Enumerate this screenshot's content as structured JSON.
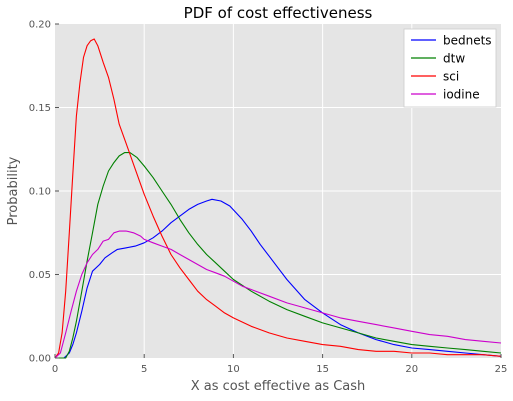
{
  "chart_data": {
    "type": "line",
    "title": "PDF of cost effectiveness",
    "xlabel": "X as cost effective as Cash",
    "ylabel": "Probability",
    "xlim": [
      0,
      25
    ],
    "ylim": [
      0,
      0.2
    ],
    "xticks": [
      0,
      5,
      10,
      15,
      20,
      25
    ],
    "xtick_labels": [
      "0",
      "5",
      "10",
      "15",
      "20",
      "25"
    ],
    "yticks": [
      0,
      0.05,
      0.1,
      0.15,
      0.2
    ],
    "ytick_labels": [
      "0.00",
      "0.05",
      "0.10",
      "0.15",
      "0.20"
    ],
    "grid": true,
    "legend_position": "top-right",
    "series": [
      {
        "name": "bednets",
        "color": "#0000ff",
        "points": [
          [
            0,
            0
          ],
          [
            0.5,
            0
          ],
          [
            0.8,
            0.003
          ],
          [
            1.0,
            0.008
          ],
          [
            1.2,
            0.015
          ],
          [
            1.5,
            0.028
          ],
          [
            1.8,
            0.042
          ],
          [
            2.1,
            0.052
          ],
          [
            2.5,
            0.056
          ],
          [
            2.8,
            0.06
          ],
          [
            3.2,
            0.063
          ],
          [
            3.5,
            0.065
          ],
          [
            4.0,
            0.066
          ],
          [
            4.5,
            0.067
          ],
          [
            5.0,
            0.069
          ],
          [
            5.5,
            0.072
          ],
          [
            6.0,
            0.076
          ],
          [
            6.5,
            0.081
          ],
          [
            7.0,
            0.085
          ],
          [
            7.5,
            0.089
          ],
          [
            8.0,
            0.092
          ],
          [
            8.5,
            0.094
          ],
          [
            8.8,
            0.095
          ],
          [
            9.3,
            0.094
          ],
          [
            9.8,
            0.091
          ],
          [
            10.5,
            0.083
          ],
          [
            11.0,
            0.076
          ],
          [
            11.5,
            0.068
          ],
          [
            12.0,
            0.061
          ],
          [
            12.5,
            0.054
          ],
          [
            13.0,
            0.047
          ],
          [
            13.5,
            0.041
          ],
          [
            14.0,
            0.035
          ],
          [
            15.0,
            0.027
          ],
          [
            16.0,
            0.02
          ],
          [
            17.0,
            0.015
          ],
          [
            18.0,
            0.011
          ],
          [
            19.0,
            0.008
          ],
          [
            20.0,
            0.006
          ],
          [
            21.0,
            0.005
          ],
          [
            22.0,
            0.004
          ],
          [
            23.0,
            0.003
          ],
          [
            24.0,
            0.002
          ],
          [
            25.0,
            0.001
          ]
        ]
      },
      {
        "name": "dtw",
        "color": "#008000",
        "points": [
          [
            0,
            0
          ],
          [
            0.6,
            0
          ],
          [
            0.8,
            0.004
          ],
          [
            1.0,
            0.012
          ],
          [
            1.2,
            0.022
          ],
          [
            1.5,
            0.04
          ],
          [
            1.8,
            0.058
          ],
          [
            2.1,
            0.075
          ],
          [
            2.4,
            0.092
          ],
          [
            2.7,
            0.103
          ],
          [
            3.0,
            0.112
          ],
          [
            3.3,
            0.117
          ],
          [
            3.6,
            0.121
          ],
          [
            3.9,
            0.123
          ],
          [
            4.2,
            0.123
          ],
          [
            4.6,
            0.12
          ],
          [
            5.0,
            0.115
          ],
          [
            5.5,
            0.108
          ],
          [
            6.0,
            0.1
          ],
          [
            6.5,
            0.092
          ],
          [
            7.0,
            0.083
          ],
          [
            7.5,
            0.075
          ],
          [
            8.0,
            0.068
          ],
          [
            8.5,
            0.062
          ],
          [
            9.0,
            0.057
          ],
          [
            9.5,
            0.052
          ],
          [
            10.0,
            0.047
          ],
          [
            11.0,
            0.04
          ],
          [
            12.0,
            0.034
          ],
          [
            13.0,
            0.029
          ],
          [
            14.0,
            0.025
          ],
          [
            15.0,
            0.021
          ],
          [
            16.0,
            0.018
          ],
          [
            17.0,
            0.015
          ],
          [
            18.0,
            0.012
          ],
          [
            19.0,
            0.01
          ],
          [
            20.0,
            0.008
          ],
          [
            21.0,
            0.007
          ],
          [
            22.0,
            0.006
          ],
          [
            23.0,
            0.005
          ],
          [
            24.0,
            0.004
          ],
          [
            25.0,
            0.003
          ]
        ]
      },
      {
        "name": "sci",
        "color": "#ff0000",
        "points": [
          [
            0,
            0
          ],
          [
            0.2,
            0.003
          ],
          [
            0.4,
            0.015
          ],
          [
            0.6,
            0.04
          ],
          [
            0.8,
            0.075
          ],
          [
            1.0,
            0.11
          ],
          [
            1.2,
            0.145
          ],
          [
            1.4,
            0.165
          ],
          [
            1.6,
            0.18
          ],
          [
            1.8,
            0.187
          ],
          [
            2.0,
            0.19
          ],
          [
            2.2,
            0.191
          ],
          [
            2.4,
            0.187
          ],
          [
            2.7,
            0.177
          ],
          [
            3.0,
            0.168
          ],
          [
            3.3,
            0.155
          ],
          [
            3.6,
            0.14
          ],
          [
            4.0,
            0.128
          ],
          [
            4.5,
            0.113
          ],
          [
            5.0,
            0.098
          ],
          [
            5.5,
            0.085
          ],
          [
            6.0,
            0.073
          ],
          [
            6.5,
            0.062
          ],
          [
            7.0,
            0.054
          ],
          [
            7.5,
            0.047
          ],
          [
            8.0,
            0.04
          ],
          [
            8.5,
            0.035
          ],
          [
            9.0,
            0.031
          ],
          [
            9.5,
            0.027
          ],
          [
            10.0,
            0.024
          ],
          [
            11.0,
            0.019
          ],
          [
            12.0,
            0.015
          ],
          [
            13.0,
            0.012
          ],
          [
            14.0,
            0.01
          ],
          [
            15.0,
            0.008
          ],
          [
            16.0,
            0.007
          ],
          [
            17.0,
            0.005
          ],
          [
            18.0,
            0.004
          ],
          [
            19.0,
            0.004
          ],
          [
            20.0,
            0.003
          ],
          [
            21.0,
            0.003
          ],
          [
            22.0,
            0.002
          ],
          [
            23.0,
            0.002
          ],
          [
            24.0,
            0.002
          ],
          [
            25.0,
            0.001
          ]
        ]
      },
      {
        "name": "iodine",
        "color": "#cc00cc",
        "points": [
          [
            0,
            0
          ],
          [
            0.3,
            0.003
          ],
          [
            0.6,
            0.015
          ],
          [
            0.9,
            0.028
          ],
          [
            1.2,
            0.04
          ],
          [
            1.5,
            0.05
          ],
          [
            1.8,
            0.057
          ],
          [
            2.1,
            0.062
          ],
          [
            2.4,
            0.065
          ],
          [
            2.7,
            0.07
          ],
          [
            3.0,
            0.071
          ],
          [
            3.3,
            0.075
          ],
          [
            3.6,
            0.076
          ],
          [
            4.0,
            0.076
          ],
          [
            4.4,
            0.075
          ],
          [
            4.8,
            0.073
          ],
          [
            5.0,
            0.071
          ],
          [
            5.5,
            0.069
          ],
          [
            6.0,
            0.067
          ],
          [
            6.5,
            0.065
          ],
          [
            7.0,
            0.062
          ],
          [
            7.5,
            0.059
          ],
          [
            8.0,
            0.056
          ],
          [
            8.5,
            0.053
          ],
          [
            9.0,
            0.051
          ],
          [
            9.5,
            0.049
          ],
          [
            10.0,
            0.046
          ],
          [
            10.5,
            0.043
          ],
          [
            11.0,
            0.041
          ],
          [
            12.0,
            0.037
          ],
          [
            13.0,
            0.033
          ],
          [
            14.0,
            0.03
          ],
          [
            15.0,
            0.027
          ],
          [
            16.0,
            0.024
          ],
          [
            17.0,
            0.022
          ],
          [
            18.0,
            0.02
          ],
          [
            19.0,
            0.018
          ],
          [
            20.0,
            0.016
          ],
          [
            21.0,
            0.014
          ],
          [
            22.0,
            0.013
          ],
          [
            23.0,
            0.011
          ],
          [
            24.0,
            0.01
          ],
          [
            25.0,
            0.009
          ]
        ]
      }
    ]
  }
}
